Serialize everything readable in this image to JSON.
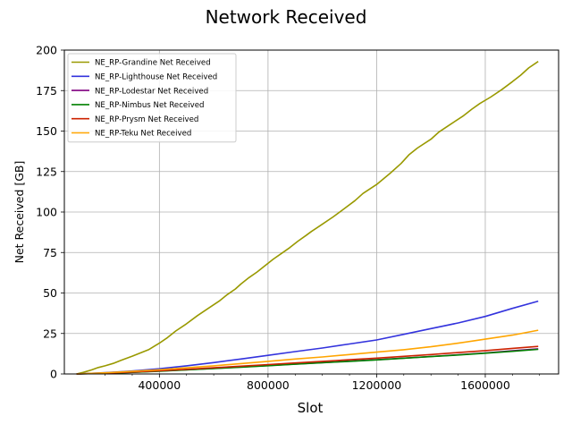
{
  "chart_data": {
    "type": "line",
    "title": "Network Received",
    "xlabel": "Slot",
    "ylabel": "Net Received [GB]",
    "xlim": [
      50000,
      1870000
    ],
    "ylim": [
      0,
      200
    ],
    "xticks": [
      400000,
      800000,
      1200000,
      1600000
    ],
    "xticklabels": [
      "400000",
      "800000",
      "1200000",
      "1600000"
    ],
    "xminor": [
      200000,
      300000,
      500000,
      600000,
      700000,
      900000,
      1000000,
      1100000,
      1300000,
      1400000,
      1500000,
      1700000,
      1800000
    ],
    "yticks": [
      0,
      25,
      50,
      75,
      100,
      125,
      150,
      175,
      200
    ],
    "yticklabels": [
      "0",
      "25",
      "50",
      "75",
      "100",
      "125",
      "150",
      "175",
      "200"
    ],
    "grid": true,
    "legend_position": "top-left",
    "series": [
      {
        "name": "NE_RP-Grandine Net Received",
        "color": "#999900",
        "x": [
          95000,
          120000,
          150000,
          175000,
          200000,
          230000,
          260000,
          300000,
          330000,
          360000,
          380000,
          400000,
          430000,
          460000,
          500000,
          540000,
          580000,
          620000,
          650000,
          680000,
          700000,
          730000,
          760000,
          790000,
          820000,
          850000,
          880000,
          910000,
          940000,
          960000,
          1000000,
          1040000,
          1080000,
          1120000,
          1150000,
          1200000,
          1250000,
          1290000,
          1320000,
          1350000,
          1400000,
          1430000,
          1470000,
          1520000,
          1550000,
          1580000,
          1620000,
          1660000,
          1700000,
          1730000,
          1760000,
          1795000
        ],
        "y": [
          0,
          1,
          2.5,
          4,
          5,
          6.5,
          8.5,
          11,
          13,
          15,
          17,
          19,
          22.5,
          26.5,
          31,
          36,
          40.5,
          45,
          49,
          52.5,
          55.5,
          59.5,
          63,
          67,
          71,
          74.5,
          78,
          82,
          85.5,
          88,
          92.5,
          97,
          102,
          107,
          111.5,
          117,
          124,
          130,
          135.5,
          139.5,
          145,
          149.5,
          154,
          159.5,
          163.5,
          167,
          171,
          175.5,
          180.5,
          184.5,
          189,
          193
        ]
      },
      {
        "name": "NE_RP-Lighthouse Net Received",
        "color": "#3333dd",
        "x": [
          95000,
          200000,
          300000,
          400000,
          500000,
          600000,
          700000,
          800000,
          900000,
          1000000,
          1100000,
          1200000,
          1300000,
          1400000,
          1500000,
          1600000,
          1700000,
          1795000
        ],
        "y": [
          0,
          0.8,
          1.8,
          3.2,
          5,
          7,
          9.2,
          11.5,
          13.8,
          16,
          18.5,
          21,
          24.5,
          28,
          31.5,
          35.5,
          40.5,
          45
        ]
      },
      {
        "name": "NE_RP-Lodestar Net Received",
        "color": "#800080",
        "x": [
          95000,
          200000,
          300000,
          400000,
          500000,
          600000,
          700000,
          800000,
          900000,
          1000000,
          1100000,
          1200000,
          1300000,
          1400000,
          1500000,
          1600000,
          1700000,
          1795000
        ],
        "y": [
          0,
          0.4,
          1,
          1.8,
          2.6,
          3.4,
          4.3,
          5.2,
          6.1,
          7,
          7.9,
          8.8,
          9.8,
          10.8,
          11.8,
          13,
          14.3,
          15.5
        ]
      },
      {
        "name": "NE_RP-Nimbus Net Received",
        "color": "#008000",
        "x": [
          95000,
          200000,
          300000,
          400000,
          500000,
          600000,
          700000,
          800000,
          900000,
          1000000,
          1100000,
          1200000,
          1300000,
          1400000,
          1500000,
          1600000,
          1700000,
          1795000
        ],
        "y": [
          0,
          0.4,
          1,
          1.7,
          2.5,
          3.3,
          4.2,
          5.1,
          6,
          6.9,
          7.8,
          8.7,
          9.7,
          10.7,
          11.7,
          12.8,
          14,
          15.2
        ]
      },
      {
        "name": "NE_RP-Prysm Net Received",
        "color": "#cc2200",
        "x": [
          95000,
          200000,
          300000,
          400000,
          500000,
          600000,
          700000,
          800000,
          900000,
          1000000,
          1100000,
          1200000,
          1300000,
          1400000,
          1500000,
          1600000,
          1700000,
          1795000
        ],
        "y": [
          0,
          0.5,
          1.2,
          2,
          2.9,
          3.8,
          4.8,
          5.8,
          6.8,
          7.8,
          8.8,
          9.8,
          10.9,
          12,
          13.2,
          14.4,
          15.8,
          17
        ]
      },
      {
        "name": "NE_RP-Teku Net Received",
        "color": "#ffa500",
        "x": [
          95000,
          200000,
          300000,
          400000,
          500000,
          600000,
          700000,
          800000,
          900000,
          1000000,
          1100000,
          1200000,
          1300000,
          1400000,
          1500000,
          1600000,
          1700000,
          1795000
        ],
        "y": [
          0,
          0.7,
          1.6,
          2.6,
          3.8,
          5,
          6.4,
          7.8,
          9.2,
          10.5,
          12,
          13.5,
          15,
          16.8,
          19,
          21.5,
          24,
          27
        ]
      }
    ]
  }
}
